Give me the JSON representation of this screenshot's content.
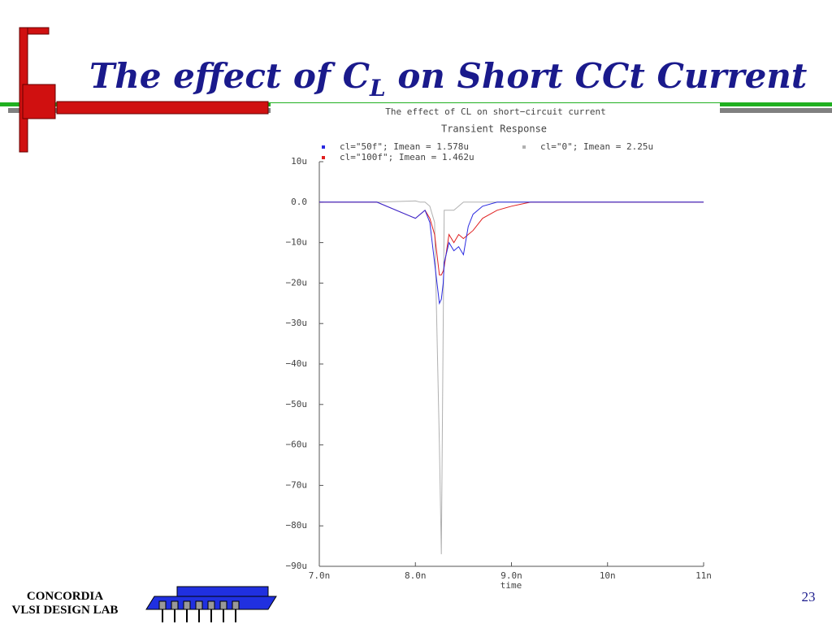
{
  "slide": {
    "title_prefix": "The effect of C",
    "title_sub": "L",
    "title_suffix": " on Short CCt Current",
    "footer_line1": "CONCORDIA",
    "footer_line2": "VLSI DESIGN LAB",
    "page_number": "23"
  },
  "chart_data": {
    "type": "line",
    "title": "The effect of CL on short−circuit current",
    "subtitle": "Transient Response",
    "x_label": "time",
    "x": [
      7.0,
      7.6,
      8.0,
      8.05,
      8.1,
      8.15,
      8.2,
      8.25,
      8.27,
      8.29,
      8.3,
      8.35,
      8.4,
      8.45,
      8.5,
      8.55,
      8.6,
      8.7,
      8.85,
      9.0,
      9.2,
      9.5,
      10.2,
      10.9,
      11.0
    ],
    "series": [
      {
        "name": "cl=\"50f\"; Imean = 1.578u",
        "color": "#2a2ae0",
        "values": [
          0,
          0,
          -4,
          -3,
          -2,
          -5,
          -15,
          -25,
          -24,
          -20,
          -15,
          -10,
          -12,
          -11,
          -13,
          -6,
          -3,
          -1,
          0,
          0,
          0,
          0,
          0,
          0,
          0
        ]
      },
      {
        "name": "cl=\"100f\"; Imean = 1.462u",
        "color": "#e02020",
        "values": [
          0,
          0,
          -4,
          -3,
          -2,
          -4,
          -8,
          -18,
          -18,
          -17,
          -16,
          -8,
          -10,
          -8,
          -9,
          -8,
          -7,
          -4,
          -2,
          -1,
          0,
          0,
          0,
          0,
          0
        ]
      },
      {
        "name": "cl=\"0\"; Imean = 2.25u",
        "color": "#b0b0b0",
        "values": [
          0,
          0,
          0.3,
          0,
          0,
          -1,
          -5,
          -60,
          -87,
          -30,
          -2,
          -2,
          -2,
          -1,
          0,
          0,
          0,
          0,
          0,
          0,
          0,
          0,
          0,
          0,
          0
        ]
      }
    ],
    "xlim": [
      7,
      11
    ],
    "xticks": [
      {
        "value": 7,
        "label": "7.0n"
      },
      {
        "value": 8,
        "label": "8.0n"
      },
      {
        "value": 9,
        "label": "9.0n"
      },
      {
        "value": 10,
        "label": "10n"
      },
      {
        "value": 11,
        "label": "11n"
      }
    ],
    "ylim": [
      -90,
      10
    ],
    "yticks": [
      {
        "value": 10,
        "label": "10u"
      },
      {
        "value": 0,
        "label": "0.0"
      },
      {
        "value": -10,
        "label": "−10u"
      },
      {
        "value": -20,
        "label": "−20u"
      },
      {
        "value": -30,
        "label": "−30u"
      },
      {
        "value": -40,
        "label": "−40u"
      },
      {
        "value": -50,
        "label": "−50u"
      },
      {
        "value": -60,
        "label": "−60u"
      },
      {
        "value": -70,
        "label": "−70u"
      },
      {
        "value": -80,
        "label": "−80u"
      },
      {
        "value": -90,
        "label": "−90u"
      }
    ],
    "title_color": "#20a040"
  }
}
